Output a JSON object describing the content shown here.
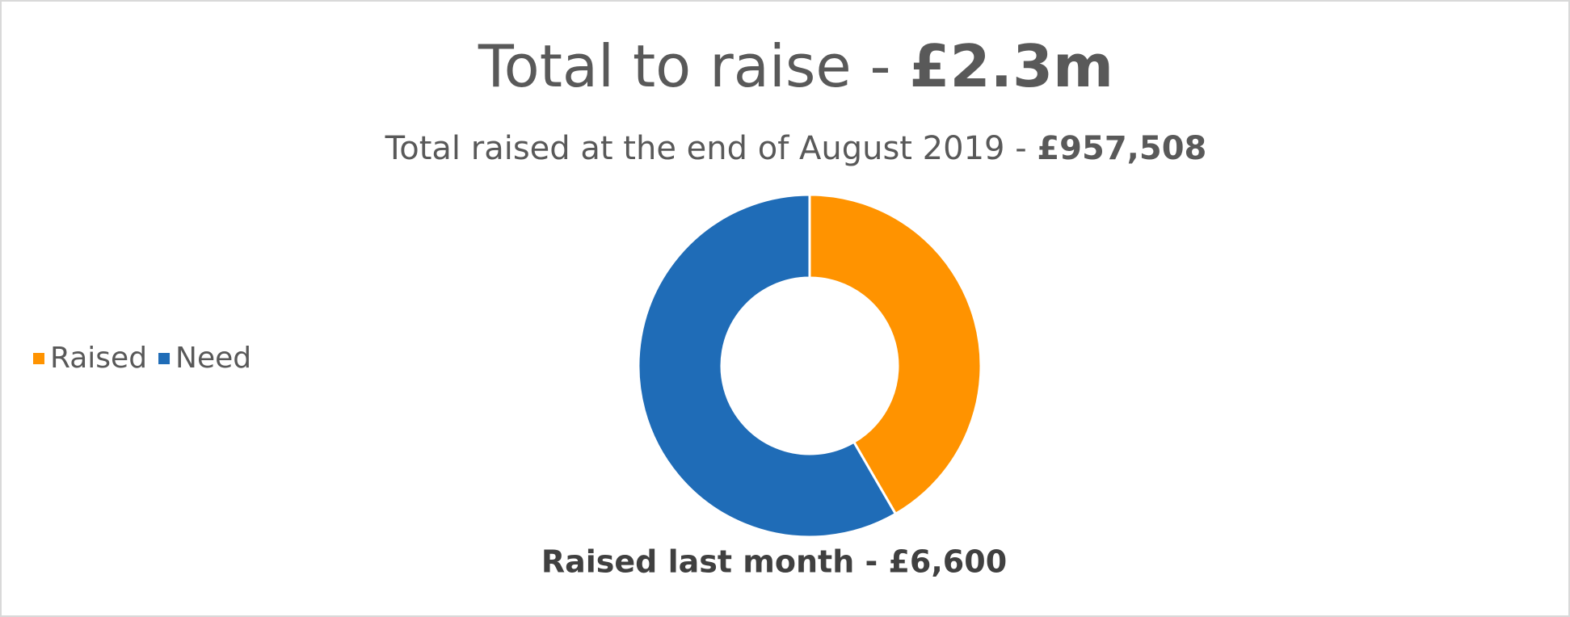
{
  "chart_data": {
    "type": "donut",
    "title": {
      "text": "Total to raise - ",
      "emphasis": "£2.3m"
    },
    "subtitle": {
      "text": "Total raised at the end of August 2019 - ",
      "emphasis": "£957,508"
    },
    "categories": [
      "Raised",
      "Need"
    ],
    "values": [
      957508,
      1342492
    ],
    "colors": [
      "#ff9300",
      "#1f6cb7"
    ],
    "legend": "left",
    "annotation": "Raised last month - £6,600"
  }
}
